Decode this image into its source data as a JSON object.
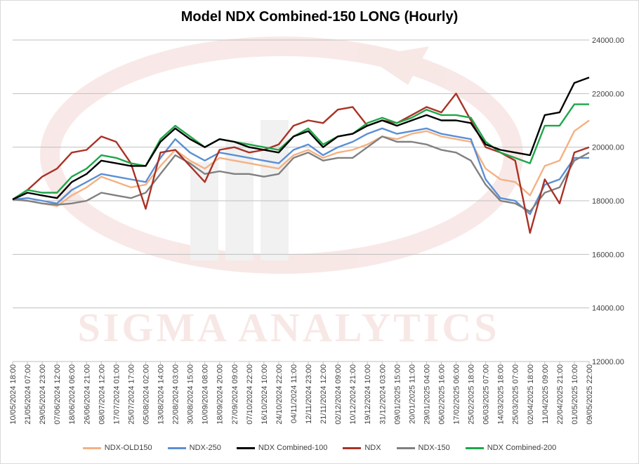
{
  "chart_data": {
    "type": "line",
    "title": "Model NDX Combined-150 LONG (Hourly)",
    "watermark": "Sigma Analytics",
    "xlabel": "",
    "ylabel": "",
    "ylim": [
      12000,
      24000
    ],
    "y_ticks": [
      "12000.00",
      "14000.00",
      "16000.00",
      "18000.00",
      "20000.00",
      "22000.00",
      "24000.00"
    ],
    "y_tick_values": [
      12000,
      14000,
      16000,
      18000,
      20000,
      22000,
      24000
    ],
    "y_axis_side": "right",
    "grid": "horizontal",
    "legend_position": "bottom",
    "x": [
      "10/05/2024 18:00",
      "21/05/2024 07:00",
      "29/05/2024 23:00",
      "07/06/2024 12:00",
      "18/06/2024 06:00",
      "26/06/2024 21:00",
      "08/07/2024 12:00",
      "17/07/2024 01:00",
      "25/07/2024 17:00",
      "05/08/2024 02:00",
      "13/08/2024 14:00",
      "22/08/2024 03:00",
      "30/08/2024 15:00",
      "10/09/2024 08:00",
      "18/09/2024 20:00",
      "27/09/2024 09:00",
      "07/10/2024 22:00",
      "16/10/2024 10:00",
      "24/10/2024 22:00",
      "04/11/2024 11:00",
      "12/11/2024 23:00",
      "21/11/2024 12:00",
      "02/12/2024 09:00",
      "10/12/2024 21:00",
      "19/12/2024 10:00",
      "31/12/2024 03:00",
      "09/01/2025 15:00",
      "20/01/2025 11:00",
      "29/01/2025 04:00",
      "06/02/2025 16:00",
      "17/02/2025 06:00",
      "25/02/2025 18:00",
      "06/03/2025 07:00",
      "14/03/2025 18:00",
      "25/03/2025 07:00",
      "02/04/2025 18:00",
      "11/04/2025 09:00",
      "22/04/2025 21:00",
      "01/05/2025 10:00",
      "09/05/2025 22:00"
    ],
    "series": [
      {
        "name": "NDX-OLD150",
        "color": "#f4b183",
        "values": [
          18050,
          18000,
          17900,
          17800,
          18200,
          18500,
          18900,
          18700,
          18500,
          18600,
          19300,
          19900,
          19500,
          19200,
          19600,
          19500,
          19400,
          19300,
          19200,
          19700,
          19900,
          19600,
          19800,
          19900,
          20100,
          20400,
          20300,
          20500,
          20600,
          20400,
          20300,
          20200,
          19200,
          18800,
          18700,
          18200,
          19300,
          19500,
          20600,
          21000
        ]
      },
      {
        "name": "NDX-250",
        "color": "#5b8fd4",
        "values": [
          18050,
          18100,
          18000,
          17900,
          18400,
          18700,
          19000,
          18900,
          18800,
          18700,
          19600,
          20300,
          19800,
          19500,
          19800,
          19700,
          19600,
          19500,
          19400,
          19900,
          20100,
          19700,
          20000,
          20200,
          20500,
          20700,
          20500,
          20600,
          20700,
          20500,
          20400,
          20300,
          18800,
          18100,
          18000,
          17500,
          18600,
          18800,
          19600,
          19600
        ]
      },
      {
        "name": "NDX Combined-100",
        "color": "#000000",
        "values": [
          18050,
          18300,
          18200,
          18100,
          18700,
          19000,
          19500,
          19400,
          19300,
          19300,
          20200,
          20700,
          20300,
          20000,
          20300,
          20200,
          20000,
          19900,
          19800,
          20400,
          20600,
          20000,
          20400,
          20500,
          20800,
          21000,
          20800,
          21000,
          21200,
          21000,
          21000,
          20900,
          20100,
          19900,
          19800,
          19700,
          21200,
          21300,
          22400,
          22600
        ]
      },
      {
        "name": "NDX",
        "color": "#a93226",
        "values": [
          18050,
          18400,
          18900,
          19200,
          19800,
          19900,
          20400,
          20200,
          19400,
          17700,
          19800,
          19900,
          19300,
          18700,
          19900,
          20000,
          19800,
          19900,
          20100,
          20800,
          21000,
          20900,
          21400,
          21500,
          20800,
          21000,
          20900,
          21200,
          21500,
          21300,
          22000,
          21000,
          20000,
          19800,
          19500,
          16800,
          18800,
          17900,
          19800,
          20000
        ]
      },
      {
        "name": "NDX-150",
        "color": "#808080",
        "values": [
          18050,
          18000,
          17900,
          17850,
          17900,
          18000,
          18300,
          18200,
          18100,
          18300,
          19000,
          19700,
          19400,
          19000,
          19100,
          19000,
          19000,
          18900,
          19000,
          19600,
          19800,
          19500,
          19600,
          19600,
          20000,
          20400,
          20200,
          20200,
          20100,
          19900,
          19800,
          19500,
          18600,
          18000,
          17900,
          17600,
          18300,
          18500,
          19500,
          19800
        ]
      },
      {
        "name": "NDX Combined-200",
        "color": "#1fa64a",
        "values": [
          18050,
          18400,
          18300,
          18300,
          18900,
          19200,
          19700,
          19600,
          19400,
          19300,
          20300,
          20800,
          20400,
          20000,
          20300,
          20200,
          20100,
          20000,
          19900,
          20400,
          20700,
          20100,
          20400,
          20500,
          20900,
          21100,
          20900,
          21100,
          21400,
          21200,
          21200,
          21100,
          20200,
          19800,
          19600,
          19400,
          20800,
          20800,
          21600,
          21600
        ]
      }
    ]
  }
}
